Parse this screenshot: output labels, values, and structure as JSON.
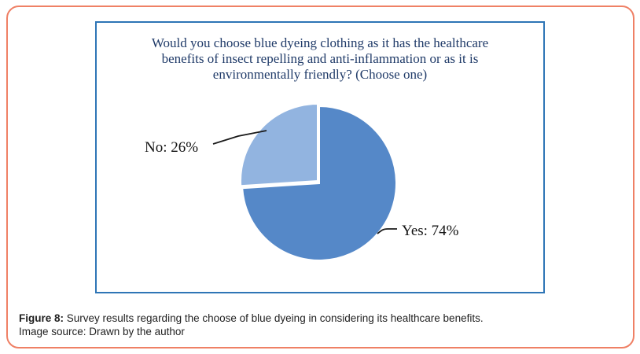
{
  "figure": {
    "caption_prefix": "Figure 8:",
    "caption_text": " Survey results regarding the choose of blue dyeing in considering its healthcare benefits.",
    "caption_source": "Image source: Drawn by the author"
  },
  "chart_data": {
    "type": "pie",
    "title": "Would you choose blue dyeing clothing as it has the healthcare benefits of insect repelling and anti-inflammation or as it is environmentally friendly? (Choose one)",
    "title_lines": [
      "Would you choose blue dyeing clothing as it has the healthcare",
      "benefits of insect repelling and anti-inflammation or as it is",
      "environmentally friendly? (Choose one)"
    ],
    "labels": [
      "Yes",
      "No"
    ],
    "values": [
      74,
      26
    ],
    "display_labels": [
      "Yes: 74%",
      "No: 26%"
    ],
    "colors": [
      "#5588C8",
      "#92B4E0"
    ],
    "explode": [
      [
        0,
        0
      ],
      [
        -2,
        -3
      ]
    ],
    "start_angle_deg": 0,
    "direction": "clockwise",
    "legend": "none",
    "title_color": "#1F3A68",
    "box_border_color": "#2E75B6",
    "outer_frame_color": "#EF8065"
  }
}
